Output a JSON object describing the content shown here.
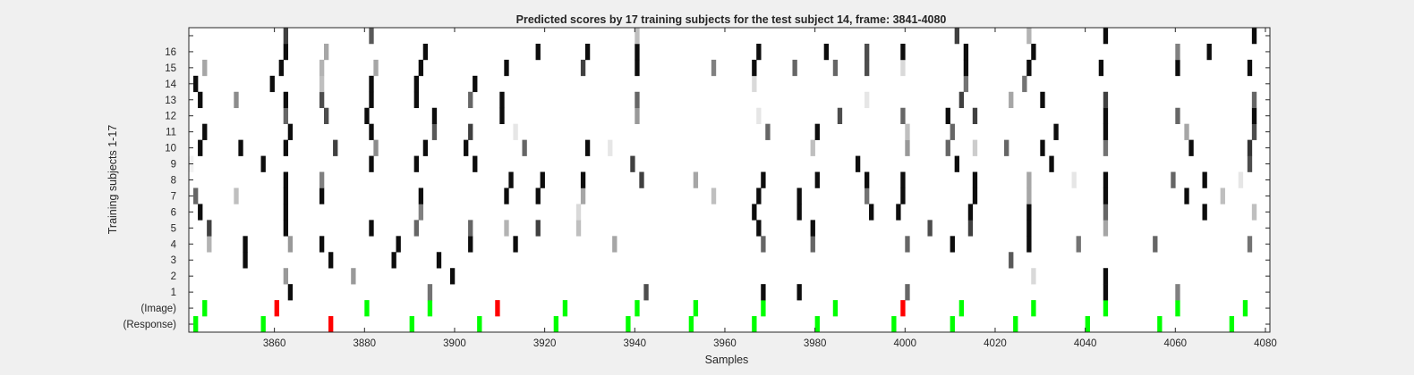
{
  "chart_data": {
    "type": "heatmap",
    "title": "Predicted scores by 17 training subjects for the test subject 14, frame: 3841-4080",
    "xlabel": "Samples",
    "ylabel": "Training subjects 1-17",
    "xlim": [
      3841,
      4080
    ],
    "x_ticks": [
      3860,
      3880,
      3900,
      3920,
      3940,
      3960,
      3980,
      4000,
      4020,
      4040,
      4060,
      4080
    ],
    "y_tick_labels": [
      "(Response)",
      "(Image)",
      "1",
      "2",
      "3",
      "4",
      "5",
      "6",
      "7",
      "8",
      "9",
      "10",
      "11",
      "12",
      "13",
      "14",
      "15",
      "16",
      ""
    ],
    "colors": {
      "score": "#000000",
      "target": "#00ff00",
      "non_target": "#ff0000",
      "background": "#ffffff"
    },
    "rows": {
      "response": {
        "green": [
          3842,
          3857,
          3890,
          3905,
          3922,
          3938,
          3952,
          3966,
          3980,
          3997,
          4010,
          4024,
          4040,
          4056,
          4072
        ],
        "red": [
          3872
        ]
      },
      "image": {
        "green": [
          3844,
          3880,
          3894,
          3924,
          3940,
          3953,
          3968,
          3984,
          4012,
          4028,
          4044,
          4060,
          4075
        ],
        "red": [
          3860,
          3909,
          3999
        ]
      },
      "subjects": [
        {
          "subject": "1",
          "cells": [
            [
              3863,
              0.95
            ],
            [
              3894,
              0.55
            ],
            [
              3942,
              0.7
            ],
            [
              3968,
              0.95
            ],
            [
              3976,
              0.95
            ],
            [
              4000,
              0.6
            ],
            [
              4044,
              0.95
            ],
            [
              4060,
              0.5
            ]
          ]
        },
        {
          "subject": "2",
          "cells": [
            [
              3862,
              0.4
            ],
            [
              3877,
              0.4
            ],
            [
              3899,
              0.95
            ],
            [
              4028,
              0.15
            ],
            [
              4044,
              0.95
            ]
          ]
        },
        {
          "subject": "3",
          "cells": [
            [
              3853,
              0.95
            ],
            [
              3872,
              0.95
            ],
            [
              3886,
              0.95
            ],
            [
              3896,
              0.95
            ],
            [
              4023,
              0.65
            ]
          ]
        },
        {
          "subject": "4",
          "cells": [
            [
              3845,
              0.3
            ],
            [
              3853,
              0.95
            ],
            [
              3863,
              0.4
            ],
            [
              3870,
              0.95
            ],
            [
              3887,
              0.95
            ],
            [
              3903,
              0.95
            ],
            [
              3913,
              0.95
            ],
            [
              3935,
              0.35
            ],
            [
              3968,
              0.6
            ],
            [
              3979,
              0.6
            ],
            [
              4000,
              0.6
            ],
            [
              4010,
              0.95
            ],
            [
              4027,
              0.95
            ],
            [
              4038,
              0.55
            ],
            [
              4055,
              0.6
            ],
            [
              4076,
              0.55
            ]
          ]
        },
        {
          "subject": "5",
          "cells": [
            [
              3845,
              0.75
            ],
            [
              3862,
              0.95
            ],
            [
              3881,
              0.95
            ],
            [
              3891,
              0.6
            ],
            [
              3903,
              0.6
            ],
            [
              3911,
              0.3
            ],
            [
              3918,
              0.75
            ],
            [
              3927,
              0.25
            ],
            [
              3967,
              0.95
            ],
            [
              3979,
              0.95
            ],
            [
              4005,
              0.7
            ],
            [
              4014,
              0.75
            ],
            [
              4027,
              0.95
            ],
            [
              4044,
              0.35
            ]
          ]
        },
        {
          "subject": "6",
          "cells": [
            [
              3843,
              0.95
            ],
            [
              3862,
              0.95
            ],
            [
              3892,
              0.5
            ],
            [
              3927,
              0.15
            ],
            [
              3966,
              0.95
            ],
            [
              3976,
              0.95
            ],
            [
              3992,
              0.95
            ],
            [
              3998,
              0.95
            ],
            [
              4014,
              0.95
            ],
            [
              4027,
              0.95
            ],
            [
              4044,
              0.6
            ],
            [
              4066,
              0.95
            ],
            [
              4077,
              0.25
            ]
          ]
        },
        {
          "subject": "7",
          "cells": [
            [
              3842,
              0.6
            ],
            [
              3851,
              0.25
            ],
            [
              3862,
              0.95
            ],
            [
              3870,
              0.95
            ],
            [
              3892,
              0.95
            ],
            [
              3911,
              0.95
            ],
            [
              3918,
              0.95
            ],
            [
              3928,
              0.35
            ],
            [
              3957,
              0.25
            ],
            [
              3967,
              0.95
            ],
            [
              3976,
              0.95
            ],
            [
              3991,
              0.55
            ],
            [
              3999,
              0.95
            ],
            [
              4015,
              0.95
            ],
            [
              4027,
              0.35
            ],
            [
              4044,
              0.95
            ],
            [
              4062,
              0.95
            ],
            [
              4070,
              0.25
            ]
          ]
        },
        {
          "subject": "8",
          "cells": [
            [
              3862,
              0.95
            ],
            [
              3870,
              0.5
            ],
            [
              3912,
              0.95
            ],
            [
              3919,
              0.95
            ],
            [
              3928,
              0.95
            ],
            [
              3941,
              0.75
            ],
            [
              3953,
              0.35
            ],
            [
              3968,
              0.95
            ],
            [
              3980,
              0.95
            ],
            [
              3991,
              0.95
            ],
            [
              3999,
              0.95
            ],
            [
              4015,
              0.95
            ],
            [
              4027,
              0.35
            ],
            [
              4037,
              0.1
            ],
            [
              4044,
              0.95
            ],
            [
              4059,
              0.6
            ],
            [
              4066,
              0.95
            ],
            [
              4074,
              0.1
            ]
          ]
        },
        {
          "subject": "9",
          "cells": [
            [
              3841,
              0.05
            ],
            [
              3857,
              0.95
            ],
            [
              3881,
              0.95
            ],
            [
              3891,
              0.95
            ],
            [
              3904,
              0.95
            ],
            [
              3939,
              0.75
            ],
            [
              3989,
              0.95
            ],
            [
              4011,
              0.95
            ],
            [
              4032,
              0.95
            ],
            [
              4076,
              0.7
            ]
          ]
        },
        {
          "subject": "10",
          "cells": [
            [
              3843,
              0.95
            ],
            [
              3852,
              0.95
            ],
            [
              3862,
              0.95
            ],
            [
              3873,
              0.75
            ],
            [
              3882,
              0.45
            ],
            [
              3893,
              0.95
            ],
            [
              3902,
              0.95
            ],
            [
              3915,
              0.6
            ],
            [
              3929,
              0.95
            ],
            [
              3934,
              0.1
            ],
            [
              3979,
              0.25
            ],
            [
              4000,
              0.4
            ],
            [
              4009,
              0.6
            ],
            [
              4015,
              0.2
            ],
            [
              4022,
              0.6
            ],
            [
              4030,
              0.95
            ],
            [
              4044,
              0.55
            ],
            [
              4063,
              0.95
            ],
            [
              4076,
              0.8
            ]
          ]
        },
        {
          "subject": "11",
          "cells": [
            [
              3844,
              0.95
            ],
            [
              3863,
              0.95
            ],
            [
              3881,
              0.95
            ],
            [
              3895,
              0.65
            ],
            [
              3903,
              0.75
            ],
            [
              3913,
              0.1
            ],
            [
              3969,
              0.6
            ],
            [
              3980,
              0.95
            ],
            [
              4000,
              0.25
            ],
            [
              4010,
              0.6
            ],
            [
              4033,
              0.95
            ],
            [
              4044,
              0.95
            ],
            [
              4062,
              0.35
            ],
            [
              4077,
              0.7
            ]
          ]
        },
        {
          "subject": "12",
          "cells": [
            [
              3862,
              0.6
            ],
            [
              3871,
              0.7
            ],
            [
              3880,
              0.95
            ],
            [
              3895,
              0.95
            ],
            [
              3910,
              0.95
            ],
            [
              3940,
              0.4
            ],
            [
              3967,
              0.1
            ],
            [
              3985,
              0.7
            ],
            [
              3999,
              0.6
            ],
            [
              4009,
              0.95
            ],
            [
              4015,
              0.75
            ],
            [
              4044,
              0.95
            ],
            [
              4060,
              0.6
            ],
            [
              4077,
              0.95
            ]
          ]
        },
        {
          "subject": "13",
          "cells": [
            [
              3843,
              0.95
            ],
            [
              3851,
              0.45
            ],
            [
              3862,
              0.95
            ],
            [
              3870,
              0.7
            ],
            [
              3881,
              0.95
            ],
            [
              3891,
              0.95
            ],
            [
              3903,
              0.6
            ],
            [
              3910,
              0.95
            ],
            [
              3940,
              0.6
            ],
            [
              3991,
              0.1
            ],
            [
              4012,
              0.75
            ],
            [
              4023,
              0.35
            ],
            [
              4030,
              0.95
            ],
            [
              4044,
              0.75
            ],
            [
              4077,
              0.6
            ]
          ]
        },
        {
          "subject": "14",
          "cells": [
            [
              3842,
              0.95
            ],
            [
              3859,
              0.95
            ],
            [
              3870,
              0.25
            ],
            [
              3881,
              0.95
            ],
            [
              3891,
              0.95
            ],
            [
              3904,
              0.95
            ],
            [
              3966,
              0.15
            ],
            [
              4013,
              0.55
            ],
            [
              4026,
              0.55
            ]
          ]
        },
        {
          "subject": "15",
          "cells": [
            [
              3844,
              0.35
            ],
            [
              3861,
              0.95
            ],
            [
              3870,
              0.3
            ],
            [
              3882,
              0.35
            ],
            [
              3892,
              0.95
            ],
            [
              3911,
              0.95
            ],
            [
              3928,
              0.75
            ],
            [
              3940,
              0.95
            ],
            [
              3957,
              0.5
            ],
            [
              3966,
              0.95
            ],
            [
              3975,
              0.6
            ],
            [
              3984,
              0.6
            ],
            [
              3991,
              0.7
            ],
            [
              3999,
              0.15
            ],
            [
              4013,
              0.95
            ],
            [
              4027,
              0.95
            ],
            [
              4043,
              0.95
            ],
            [
              4060,
              0.95
            ],
            [
              4076,
              0.95
            ]
          ]
        },
        {
          "subject": "16",
          "cells": [
            [
              3862,
              0.95
            ],
            [
              3871,
              0.35
            ],
            [
              3893,
              0.95
            ],
            [
              3918,
              0.95
            ],
            [
              3929,
              0.95
            ],
            [
              3940,
              0.95
            ],
            [
              3967,
              0.95
            ],
            [
              3982,
              0.95
            ],
            [
              3991,
              0.7
            ],
            [
              3999,
              0.95
            ],
            [
              4013,
              0.95
            ],
            [
              4028,
              0.95
            ],
            [
              4060,
              0.5
            ],
            [
              4067,
              0.95
            ]
          ]
        },
        {
          "subject": "17",
          "cells": [
            [
              3862,
              0.75
            ],
            [
              3881,
              0.65
            ],
            [
              3940,
              0.25
            ],
            [
              4011,
              0.75
            ],
            [
              4027,
              0.3
            ],
            [
              4044,
              0.95
            ],
            [
              4077,
              0.95
            ]
          ]
        }
      ]
    }
  }
}
